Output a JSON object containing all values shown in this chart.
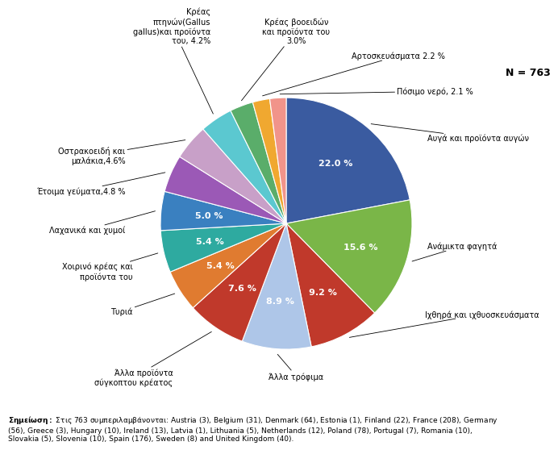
{
  "title_annotation": "N = 763",
  "slices": [
    {
      "label": "Αυγά και προϊόντα αυγών",
      "value": 22.0,
      "color": "#3a5ba0",
      "pct": "22.0 %"
    },
    {
      "label": "Ανάμικτα φαγητά",
      "value": 15.6,
      "color": "#7ab648",
      "pct": "15.6 %"
    },
    {
      "label": "Ιχθηρά και ιχθυοσκευάσματα",
      "value": 9.2,
      "color": "#c0392b",
      "pct": "9.2 %"
    },
    {
      "label": "Άλλα τρόφιμα",
      "value": 8.9,
      "color": "#aec6e8",
      "pct": "8.9 %"
    },
    {
      "label": "Άλλα προϊόντα\nσύγκοπτου κρέατος",
      "value": 7.6,
      "color": "#c0392b",
      "pct": "7.6 %"
    },
    {
      "label": "Τυριά",
      "value": 5.4,
      "color": "#e07b30",
      "pct": "5.4 %"
    },
    {
      "label": "Χοιρινό κρέας και\nπροϊόντα του",
      "value": 5.4,
      "color": "#2eaaa0",
      "pct": "5.4 %"
    },
    {
      "label": "Λαχανικά και χυμοί",
      "value": 5.0,
      "color": "#3a80c0",
      "pct": "5.0 %"
    },
    {
      "label": "Έτοιμα γεύματα,4.8 %",
      "value": 4.8,
      "color": "#9b59b6",
      "pct": ""
    },
    {
      "label": "Οστρακοειδή και\nμαλάκια,4.6%",
      "value": 4.6,
      "color": "#c8a0c8",
      "pct": ""
    },
    {
      "label": "Κρέας πτηνών(Gallus\ngallus)και προϊόντα\nτου, 4.2%",
      "value": 4.2,
      "color": "#5bc8d0",
      "pct": ""
    },
    {
      "label": "Κρέας βοοειδών\nκαι προϊόντα του\n3.0%",
      "value": 3.0,
      "color": "#5aad6a",
      "pct": ""
    },
    {
      "label": "Αρτοσκευάσματα 2.2 %",
      "value": 2.2,
      "color": "#f0a830",
      "pct": ""
    },
    {
      "label": "Πόσιμο νερό, 2.1 %",
      "value": 2.1,
      "color": "#f1948a",
      "pct": ""
    }
  ],
  "footnote_bold": "Σημείωση:",
  "footnote_rest": " Στις 763 συμπεριλαμβάνονται: Austria (3), Belgium (31), Denmark (64), Estonia (1), Finland (22), France (208), Germany (56), Greece (3), Hungary (10), Ireland (13), Latvia (1), Lithuania (5), Netherlands (12), Poland (78), Portugal (7), Romania (10), Slovakia (5), Slovenia (10), Spain (176), Sweden (8) and United Kingdom (40).",
  "background_color": "#ffffff"
}
